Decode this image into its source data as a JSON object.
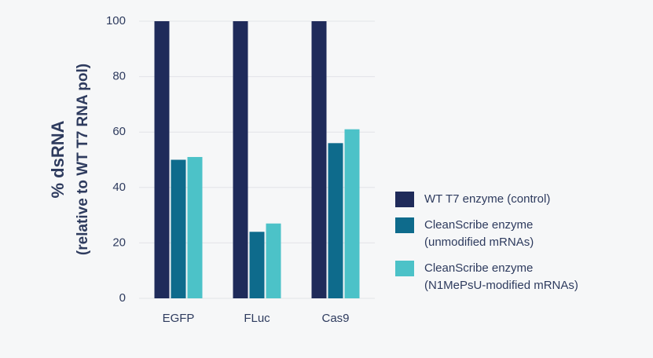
{
  "chart_data": {
    "type": "bar",
    "ylabel": [
      "% dsRNA",
      "(relative to WT T7 RNA pol)"
    ],
    "categories": [
      "EGFP",
      "FLuc",
      "Cas9"
    ],
    "series": [
      {
        "name": "WT T7 enzyme (control)",
        "color": "#1f2b5a",
        "values": [
          100,
          100,
          100
        ]
      },
      {
        "name": "CleanScribe enzyme\n(unmodified mRNAs)",
        "color": "#0e6b8c",
        "values": [
          50,
          24,
          56
        ]
      },
      {
        "name": "CleanScribe enzyme\n(N1MePsU-modified mRNAs)",
        "color": "#4cc2c8",
        "values": [
          51,
          27,
          61
        ]
      }
    ],
    "ylim": [
      0,
      100
    ],
    "yticks": [
      0,
      20,
      40,
      60,
      80,
      100
    ],
    "grid": true
  }
}
